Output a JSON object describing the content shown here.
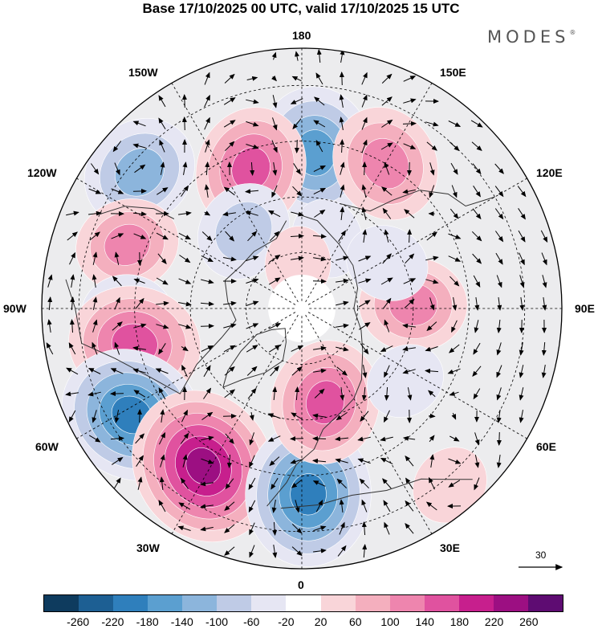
{
  "title": "Base 17/10/2025 00 UTC, valid 17/10/2025 15 UTC",
  "brand": "MODES",
  "brand_mark": "®",
  "longitude_labels": {
    "n180": "180",
    "e150": "150E",
    "e120": "120E",
    "e90": "90E",
    "e60": "60E",
    "e30": "30E",
    "n0": "0",
    "w30": "30W",
    "w60": "60W",
    "w90": "90W",
    "w120": "120W",
    "w150": "150W"
  },
  "reference_vector": {
    "label": "30"
  },
  "colorbar": {
    "colors": [
      "#0e3b5e",
      "#1d5f93",
      "#2f7fbc",
      "#5b9fd0",
      "#8cb5dc",
      "#bfcbe6",
      "#e6e6f3",
      "#ffffff",
      "#f9d5d9",
      "#f4afbe",
      "#ee85ae",
      "#e0529f",
      "#c71f8d",
      "#9c0f82",
      "#5e0c72"
    ],
    "ticks": [
      "-260",
      "-220",
      "-180",
      "-140",
      "-100",
      "-60",
      "-20",
      "20",
      "60",
      "100",
      "140",
      "180",
      "220",
      "260"
    ]
  },
  "anomalies": [
    {
      "lon": 175,
      "lat": 48,
      "value": -190
    },
    {
      "lon": 150,
      "lat": 45,
      "value": 150
    },
    {
      "lon": -160,
      "lat": 50,
      "value": 170
    },
    {
      "lon": -130,
      "lat": 33,
      "value": -150
    },
    {
      "lon": -110,
      "lat": 40,
      "value": 120
    },
    {
      "lon": -143,
      "lat": 64,
      "value": -110
    },
    {
      "lon": -88,
      "lat": 43,
      "value": -90
    },
    {
      "lon": -78,
      "lat": 44,
      "value": 190
    },
    {
      "lon": -58,
      "lat": 36,
      "value": -220
    },
    {
      "lon": -32,
      "lat": 40,
      "value": 250
    },
    {
      "lon": 2,
      "lat": 40,
      "value": -220
    },
    {
      "lon": 14,
      "lat": 64,
      "value": 170
    },
    {
      "lon": 92,
      "lat": 60,
      "value": 130
    },
    {
      "lon": 160,
      "lat": 70,
      "value": -60
    },
    {
      "lon": 118,
      "lat": 64,
      "value": -70
    },
    {
      "lon": 55,
      "lat": 56,
      "value": -60
    },
    {
      "lon": 40,
      "lat": 28,
      "value": 60
    },
    {
      "lon": -175,
      "lat": 78,
      "value": 50
    }
  ]
}
